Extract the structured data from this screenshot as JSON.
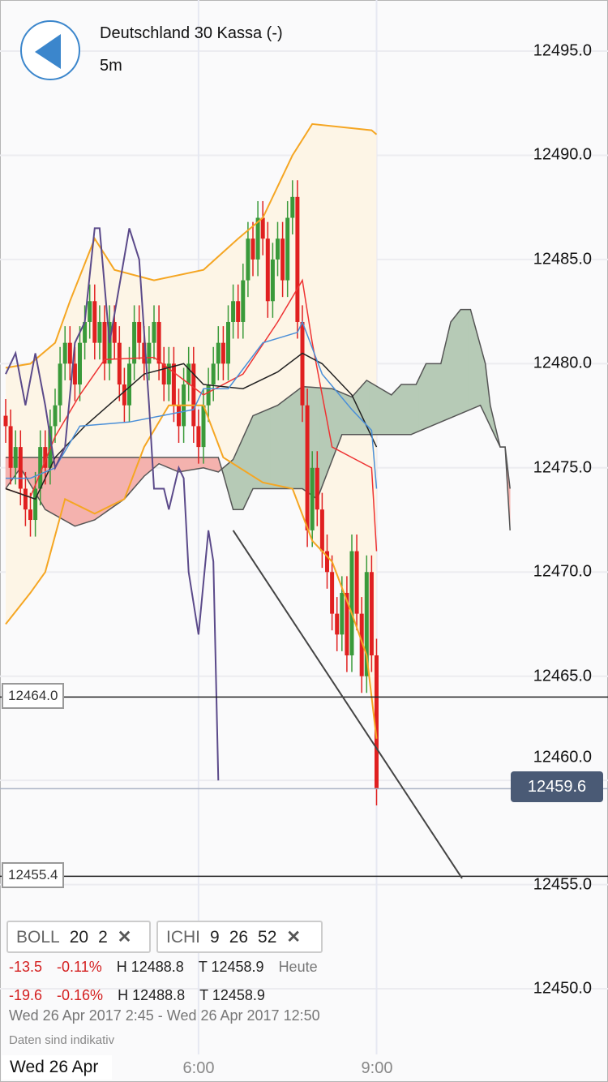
{
  "header": {
    "title": "Deutschland 30 Kassa (-)",
    "interval": "5m",
    "back_icon": "back-arrow-icon"
  },
  "colors": {
    "up": "#3a9a3a",
    "down": "#e02020",
    "boll_band": "#f5a623",
    "boll_mid": "#e33",
    "kijun": "#222",
    "tenkan": "#4a8fd8",
    "chikou": "#5b4a8a",
    "cloud_up": "#b6cab6",
    "cloud_down": "#f4b2ae",
    "badge": "#4a5a75"
  },
  "chart_data": {
    "type": "candlestick",
    "y_ticks": [
      "12495.0",
      "12490.0",
      "12485.0",
      "12480.0",
      "12475.0",
      "12470.0",
      "12465.0",
      "12460.0",
      "12455.0",
      "12450.0"
    ],
    "y_tick_values": [
      12495,
      12490,
      12485,
      12480,
      12475,
      12470,
      12465,
      12460,
      12455,
      12450
    ],
    "ylim": [
      12449,
      12497.5
    ],
    "x_labels": {
      "date": "Wed 26 Apr",
      "ticks": [
        {
          "label": "6:00",
          "bar": 39
        },
        {
          "label": "9:00",
          "bar": 75
        }
      ]
    },
    "first_bar": "2:45",
    "bar_interval": "5m",
    "close": [
      12477,
      12475,
      12476,
      12474,
      12473,
      12472.5,
      12474,
      12476,
      12475,
      12477,
      12478,
      12480,
      12481,
      12480,
      12479,
      12481,
      12482,
      12483,
      12481,
      12482,
      12480,
      12482,
      12481,
      12479,
      12478,
      12480,
      12482,
      12481,
      12480,
      12481,
      12482,
      12480,
      12479,
      12480,
      12478,
      12477,
      12479,
      12480,
      12477,
      12476,
      12478,
      12479,
      12480,
      12481,
      12480,
      12482,
      12483,
      12482,
      12484,
      12486,
      12485,
      12487,
      12486,
      12483,
      12485,
      12486,
      12484,
      12487,
      12488,
      12482,
      12478,
      12472,
      12475,
      12473,
      12471,
      12470,
      12468,
      12467,
      12469,
      12466,
      12471,
      12468,
      12465,
      12470,
      12466,
      12459.6
    ],
    "bollinger": {
      "upper": [
        [
          0,
          12479.8
        ],
        [
          5,
          12480
        ],
        [
          10,
          12481
        ],
        [
          13,
          12483
        ],
        [
          18,
          12486
        ],
        [
          22,
          12484.5
        ],
        [
          30,
          12484
        ],
        [
          40,
          12484.5
        ],
        [
          47,
          12486
        ],
        [
          52,
          12487
        ],
        [
          58,
          12490
        ],
        [
          62,
          12491.5
        ],
        [
          74,
          12491.2
        ],
        [
          75,
          12491
        ]
      ],
      "middle": [
        [
          0,
          12474
        ],
        [
          5,
          12473.6
        ],
        [
          10,
          12476.5
        ],
        [
          15,
          12478.5
        ],
        [
          20,
          12480.2
        ],
        [
          30,
          12480.3
        ],
        [
          40,
          12478.5
        ],
        [
          48,
          12479.5
        ],
        [
          55,
          12482
        ],
        [
          60,
          12484
        ],
        [
          62,
          12481
        ],
        [
          66,
          12476
        ],
        [
          70,
          12475.5
        ],
        [
          74,
          12475
        ],
        [
          75,
          12471
        ]
      ],
      "lower": [
        [
          0,
          12467.5
        ],
        [
          5,
          12469
        ],
        [
          8,
          12470
        ],
        [
          12,
          12473.5
        ],
        [
          18,
          12472.8
        ],
        [
          24,
          12473.5
        ],
        [
          28,
          12476
        ],
        [
          33,
          12478
        ],
        [
          40,
          12478
        ],
        [
          44,
          12475.5
        ],
        [
          52,
          12474.3
        ],
        [
          58,
          12474
        ],
        [
          62,
          12471.5
        ],
        [
          66,
          12470.5
        ],
        [
          70,
          12468
        ],
        [
          73,
          12466
        ],
        [
          75,
          12462
        ]
      ]
    },
    "ichimoku": {
      "kijun": [
        [
          0,
          12474
        ],
        [
          6,
          12473.5
        ],
        [
          10,
          12475.5
        ],
        [
          16,
          12477
        ],
        [
          28,
          12479.5
        ],
        [
          36,
          12480
        ],
        [
          40,
          12479
        ],
        [
          48,
          12478.8
        ],
        [
          55,
          12479.6
        ],
        [
          60,
          12480.5
        ],
        [
          64,
          12480
        ],
        [
          70,
          12478.5
        ],
        [
          73,
          12477
        ],
        [
          75,
          12476
        ]
      ],
      "tenkan": [
        [
          0,
          12474.5
        ],
        [
          5,
          12474.5
        ],
        [
          10,
          12475
        ],
        [
          15,
          12477
        ],
        [
          25,
          12477.2
        ],
        [
          38,
          12477.8
        ],
        [
          40,
          12478.8
        ],
        [
          45,
          12478.8
        ],
        [
          52,
          12481
        ],
        [
          59,
          12481.5
        ],
        [
          60,
          12482
        ],
        [
          64,
          12479.5
        ],
        [
          70,
          12477.8
        ],
        [
          74,
          12476.8
        ],
        [
          75,
          12474
        ]
      ],
      "chikou": [
        [
          0,
          12479.5
        ],
        [
          2,
          12480.5
        ],
        [
          4,
          12478
        ],
        [
          6,
          12480.5
        ],
        [
          8,
          12478
        ],
        [
          10,
          12475
        ],
        [
          12,
          12476
        ],
        [
          14,
          12481
        ],
        [
          16,
          12482
        ],
        [
          18,
          12486.5
        ],
        [
          19,
          12486.5
        ],
        [
          21,
          12481
        ],
        [
          25,
          12486.5
        ],
        [
          27,
          12485
        ],
        [
          29,
          12478
        ],
        [
          30,
          12474
        ],
        [
          32,
          12474
        ],
        [
          33,
          12473
        ],
        [
          35,
          12475
        ],
        [
          36,
          12474.5
        ],
        [
          37,
          12470
        ],
        [
          39,
          12467
        ],
        [
          41,
          12472
        ],
        [
          42,
          12470.5
        ],
        [
          43,
          12460
        ]
      ],
      "span_a": [
        [
          0,
          12474
        ],
        [
          3,
          12475
        ],
        [
          8,
          12473
        ],
        [
          14,
          12472.2
        ],
        [
          18,
          12472.5
        ],
        [
          24,
          12473.5
        ],
        [
          28,
          12474.6
        ],
        [
          31,
          12475.2
        ],
        [
          35,
          12474.8
        ],
        [
          40,
          12475
        ],
        [
          43,
          12474.8
        ],
        [
          46,
          12475.4
        ],
        [
          50,
          12477.5
        ],
        [
          55,
          12478
        ],
        [
          60,
          12478.9
        ],
        [
          66,
          12478.8
        ],
        [
          70,
          12478.4
        ],
        [
          73,
          12479.2
        ],
        [
          78,
          12478.5
        ],
        [
          80,
          12479
        ],
        [
          83,
          12479
        ],
        [
          85,
          12480
        ],
        [
          88,
          12480
        ],
        [
          90,
          12482
        ],
        [
          92,
          12482.6
        ],
        [
          94,
          12482.6
        ],
        [
          97,
          12480
        ],
        [
          98,
          12478
        ],
        [
          100,
          12476
        ],
        [
          101,
          12476
        ],
        [
          102,
          12472
        ]
      ],
      "span_b": [
        [
          0,
          12475.5
        ],
        [
          43,
          12475.5
        ],
        [
          44,
          12474.7
        ],
        [
          46,
          12473
        ],
        [
          48,
          12473
        ],
        [
          50,
          12474
        ],
        [
          60,
          12474
        ],
        [
          63,
          12473.5
        ],
        [
          68,
          12476.6
        ],
        [
          82,
          12476.6
        ],
        [
          96,
          12478
        ],
        [
          100,
          12476
        ],
        [
          101,
          12476
        ],
        [
          102,
          12474
        ]
      ]
    },
    "trendline": [
      [
        46,
        12472
      ],
      [
        92.3,
        12455.3
      ]
    ],
    "hlines": [
      {
        "label": "12464.0",
        "value": 12464.0
      },
      {
        "label": "12455.4",
        "value": 12455.4
      }
    ],
    "last_price": {
      "label": "12459.6",
      "value": 12459.6
    }
  },
  "indicators": [
    {
      "name": "BOLL",
      "params": [
        "20",
        "2"
      ],
      "remove_icon": "close-icon"
    },
    {
      "name": "ICHI",
      "params": [
        "9",
        "26",
        "52"
      ],
      "remove_icon": "close-icon"
    }
  ],
  "stats": [
    {
      "change": "-13.5",
      "pct": "-0.11%",
      "high": "H 12488.8",
      "low": "T 12458.9",
      "period": "Heute"
    },
    {
      "change": "-19.6",
      "pct": "-0.16%",
      "high": "H 12488.8",
      "low": "T 12458.9",
      "period": ""
    }
  ],
  "range": "Wed 26 Apr 2017 2:45 - Wed 26 Apr 2017 12:50",
  "note": "Daten sind indikativ"
}
